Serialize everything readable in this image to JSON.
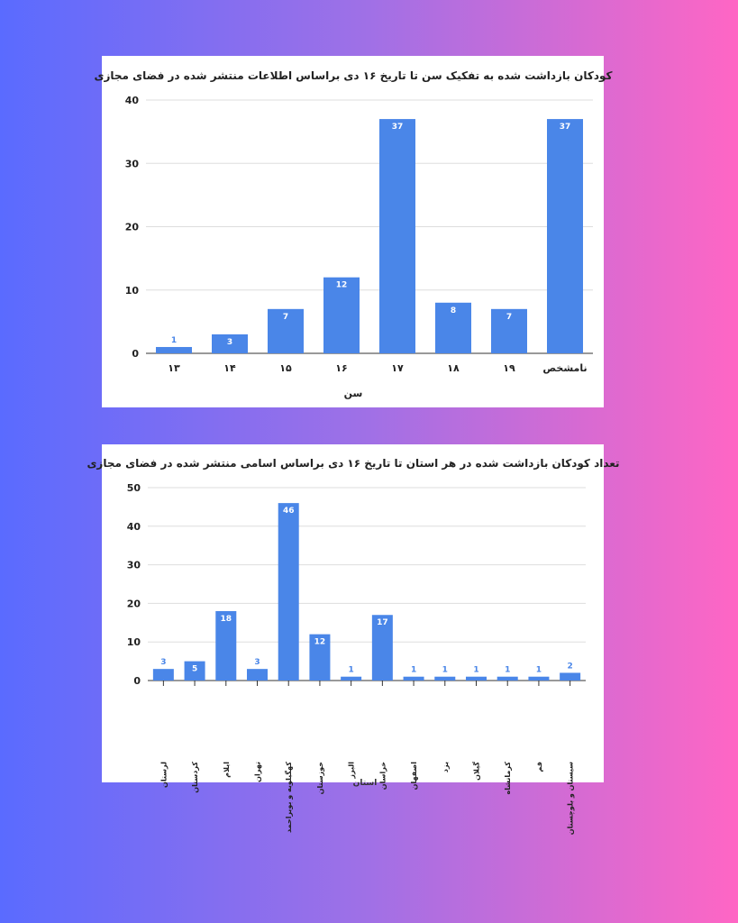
{
  "chart_data": [
    {
      "type": "bar",
      "title": "کودکان بازداشت شده به تفکیک سن تا تاریخ ۱۶ دی براساس اطلاعات منتشر شده در فضای مجازی",
      "xlabel": "سن",
      "ylabel": "",
      "categories": [
        "۱۳",
        "۱۴",
        "۱۵",
        "۱۶",
        "۱۷",
        "۱۸",
        "۱۹",
        "نامشخص"
      ],
      "values": [
        1,
        3,
        7,
        12,
        37,
        8,
        7,
        37
      ],
      "ylim": [
        0,
        40
      ],
      "yticks": [
        0,
        10,
        20,
        30,
        40
      ],
      "grid": true,
      "bar_color": "#4a86e8"
    },
    {
      "type": "bar",
      "title": "تعداد کودکان بازداشت شده در  هر استان تا تاریخ ۱۶ دی براساس اسامی منتشر شده در فضای مجازی",
      "xlabel": "استان",
      "ylabel": "",
      "categories": [
        "لرستان",
        "کردستان",
        "ایلام",
        "تهران",
        "کهگیلویه و بویراحمد",
        "خوزستان",
        "البرز",
        "خراسان",
        "اصفهان",
        "یزد",
        "گیلان",
        "کرمانشاه",
        "قم",
        "سیستان و بلوچستان"
      ],
      "values": [
        3,
        5,
        18,
        3,
        46,
        12,
        1,
        17,
        1,
        1,
        1,
        1,
        1,
        2
      ],
      "ylim": [
        0,
        50
      ],
      "yticks": [
        0,
        10,
        20,
        30,
        40,
        50
      ],
      "grid": true,
      "bar_color": "#4a86e8"
    }
  ]
}
